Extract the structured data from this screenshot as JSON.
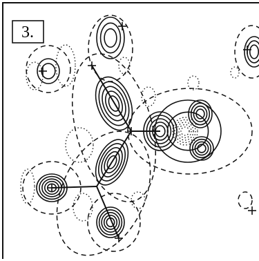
{
  "panel": {
    "label": "3."
  }
}
